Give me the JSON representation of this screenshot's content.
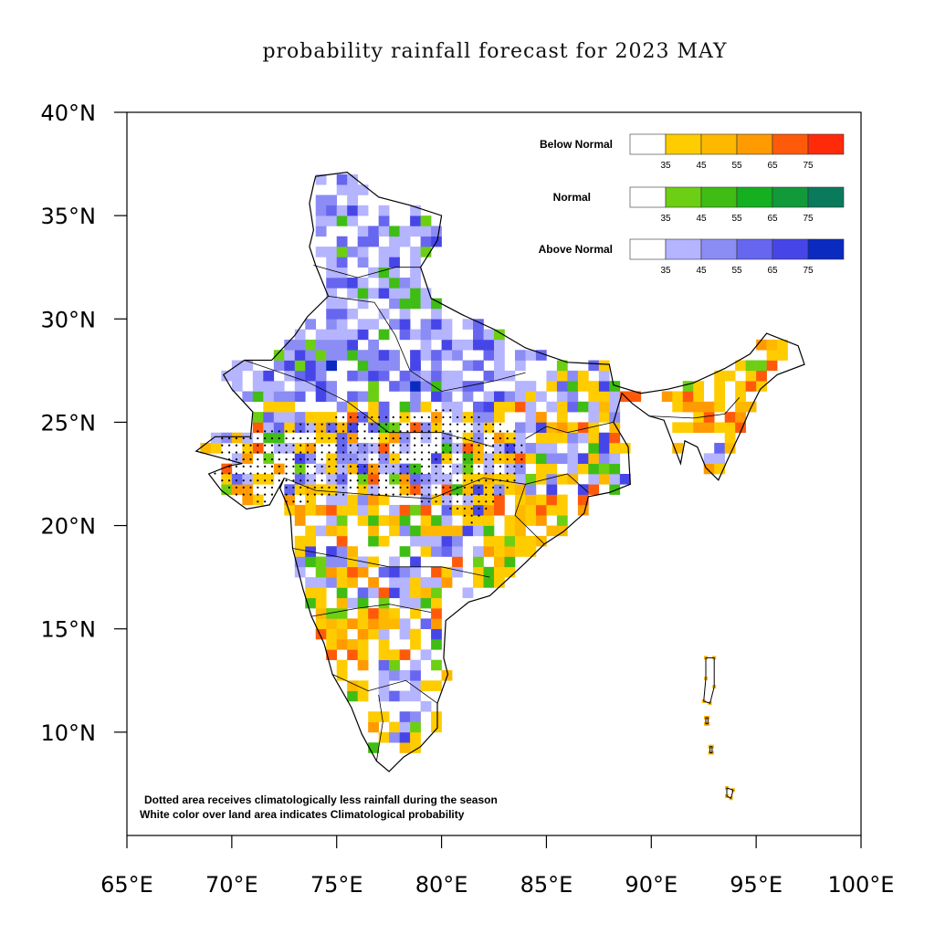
{
  "title": "probability rainfall forecast for 2023 MAY",
  "axes": {
    "lat_labels": [
      "40°N",
      "35°N",
      "30°N",
      "25°N",
      "20°N",
      "15°N",
      "10°N"
    ],
    "lon_labels": [
      "65°E",
      "70°E",
      "75°E",
      "80°E",
      "85°E",
      "90°E",
      "95°E",
      "100°E"
    ]
  },
  "legend": {
    "ticks": [
      "35",
      "45",
      "55",
      "65",
      "75"
    ],
    "categories": [
      {
        "name": "Below Normal",
        "colors": [
          "#ffffff",
          "#ffcc00",
          "#ffb800",
          "#ff9a00",
          "#ff5a0a",
          "#ff2a0a"
        ]
      },
      {
        "name": "Normal",
        "colors": [
          "#ffffff",
          "#6ccf14",
          "#3fbd14",
          "#14b020",
          "#109a3a",
          "#0a7a5c"
        ]
      },
      {
        "name": "Above Normal",
        "colors": [
          "#ffffff",
          "#b4b4ff",
          "#8c8cf5",
          "#6666f0",
          "#4646e8",
          "#0a2ac0"
        ]
      }
    ]
  },
  "notes": [
    "Dotted area receives climatologically less rainfall during the season",
    "White color over land area indicates Climatological probability"
  ],
  "map": {
    "extent": {
      "lon_min": 65,
      "lon_max": 100,
      "lat_min": 5,
      "lat_max": 40
    },
    "mainland_outline": [
      [
        74.0,
        36.9
      ],
      [
        75.5,
        37.1
      ],
      [
        77.0,
        35.9
      ],
      [
        78.5,
        35.5
      ],
      [
        80.0,
        35.0
      ],
      [
        79.8,
        33.8
      ],
      [
        79.0,
        32.5
      ],
      [
        79.5,
        31.0
      ],
      [
        81.0,
        30.2
      ],
      [
        82.5,
        29.5
      ],
      [
        84.0,
        28.6
      ],
      [
        86.0,
        27.9
      ],
      [
        88.0,
        27.8
      ],
      [
        88.2,
        26.8
      ],
      [
        89.5,
        26.4
      ],
      [
        90.8,
        26.6
      ],
      [
        92.0,
        26.9
      ],
      [
        93.5,
        27.6
      ],
      [
        94.7,
        28.3
      ],
      [
        95.5,
        29.3
      ],
      [
        97.0,
        28.7
      ],
      [
        97.3,
        27.8
      ],
      [
        96.0,
        27.3
      ],
      [
        95.2,
        26.6
      ],
      [
        94.7,
        25.6
      ],
      [
        94.2,
        24.4
      ],
      [
        93.6,
        23.1
      ],
      [
        93.2,
        22.2
      ],
      [
        92.6,
        22.8
      ],
      [
        92.2,
        23.8
      ],
      [
        91.6,
        24.1
      ],
      [
        91.4,
        23.0
      ],
      [
        90.6,
        25.1
      ],
      [
        89.9,
        25.3
      ],
      [
        89.1,
        25.9
      ],
      [
        88.6,
        26.4
      ],
      [
        88.2,
        25.0
      ],
      [
        88.9,
        23.8
      ],
      [
        89.0,
        22.0
      ],
      [
        88.0,
        21.6
      ],
      [
        87.0,
        21.4
      ],
      [
        86.8,
        20.6
      ],
      [
        85.8,
        19.7
      ],
      [
        84.9,
        19.1
      ],
      [
        84.0,
        18.2
      ],
      [
        82.3,
        16.6
      ],
      [
        81.3,
        16.3
      ],
      [
        80.2,
        15.4
      ],
      [
        80.1,
        13.6
      ],
      [
        80.3,
        12.8
      ],
      [
        79.8,
        11.4
      ],
      [
        79.8,
        10.2
      ],
      [
        79.0,
        9.3
      ],
      [
        78.2,
        8.8
      ],
      [
        77.5,
        8.1
      ],
      [
        76.9,
        8.6
      ],
      [
        76.2,
        9.9
      ],
      [
        75.7,
        11.2
      ],
      [
        74.8,
        12.8
      ],
      [
        74.4,
        14.3
      ],
      [
        73.8,
        15.6
      ],
      [
        73.4,
        16.9
      ],
      [
        72.9,
        18.9
      ],
      [
        72.8,
        20.5
      ],
      [
        72.6,
        21.1
      ],
      [
        72.3,
        21.8
      ],
      [
        72.5,
        22.3
      ],
      [
        71.8,
        21.0
      ],
      [
        70.7,
        20.8
      ],
      [
        69.5,
        21.7
      ],
      [
        68.9,
        22.5
      ],
      [
        69.9,
        22.9
      ],
      [
        70.5,
        23.0
      ],
      [
        68.3,
        23.6
      ],
      [
        69.2,
        24.3
      ],
      [
        70.9,
        24.3
      ],
      [
        71.0,
        25.5
      ],
      [
        70.0,
        26.6
      ],
      [
        69.6,
        27.3
      ],
      [
        70.6,
        28.0
      ],
      [
        71.9,
        28.0
      ],
      [
        73.0,
        29.2
      ],
      [
        73.6,
        30.1
      ],
      [
        74.6,
        31.1
      ],
      [
        74.0,
        32.6
      ],
      [
        73.7,
        33.5
      ],
      [
        73.9,
        34.3
      ],
      [
        73.7,
        35.6
      ],
      [
        73.9,
        36.5
      ]
    ],
    "islands": [
      [
        [
          92.6,
          13.6
        ],
        [
          93.0,
          13.6
        ],
        [
          93.0,
          12.2
        ],
        [
          92.8,
          11.4
        ],
        [
          92.5,
          11.5
        ],
        [
          92.6,
          12.6
        ]
      ],
      [
        [
          92.8,
          9.3
        ],
        [
          92.9,
          9.3
        ],
        [
          92.9,
          9.0
        ],
        [
          92.8,
          9.0
        ]
      ],
      [
        [
          93.6,
          7.3
        ],
        [
          93.9,
          7.2
        ],
        [
          93.8,
          6.8
        ],
        [
          93.6,
          6.9
        ]
      ],
      [
        [
          92.6,
          10.7
        ],
        [
          92.7,
          10.7
        ],
        [
          92.7,
          10.4
        ],
        [
          92.6,
          10.4
        ]
      ]
    ]
  }
}
